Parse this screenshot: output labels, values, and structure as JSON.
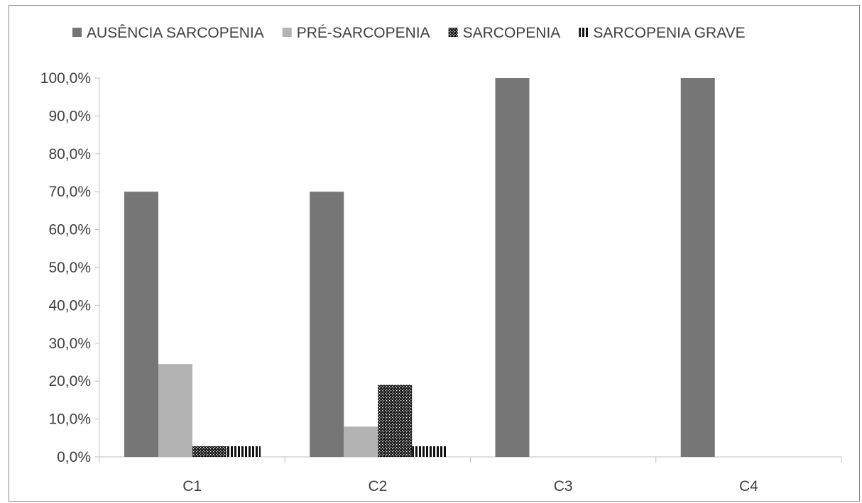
{
  "chart_data": {
    "type": "bar",
    "title": "",
    "xlabel": "",
    "ylabel": "",
    "categories": [
      "C1",
      "C2",
      "C3",
      "C4"
    ],
    "series": [
      {
        "name": "AUSÊNCIA SARCOPENIA",
        "values": [
          70.0,
          70.0,
          100.0,
          100.0
        ],
        "color": "#767676",
        "pattern": "solid"
      },
      {
        "name": "PRÉ-SARCOPENIA",
        "values": [
          24.5,
          8.0,
          0.0,
          0.0
        ],
        "color": "#b3b3b3",
        "pattern": "solid"
      },
      {
        "name": "SARCOPENIA",
        "values": [
          2.8,
          19.0,
          0.0,
          0.0
        ],
        "color": "#111111",
        "pattern": "dots"
      },
      {
        "name": "SARCOPENIA GRAVE",
        "values": [
          2.8,
          2.8,
          0.0,
          0.0
        ],
        "color": "#111111",
        "pattern": "vstripes"
      }
    ],
    "ylim": [
      0,
      100
    ],
    "yticks": [
      "0,0%",
      "10,0%",
      "20,0%",
      "30,0%",
      "40,0%",
      "50,0%",
      "60,0%",
      "70,0%",
      "80,0%",
      "90,0%",
      "100,0%"
    ],
    "grid": false,
    "legend_position": "top"
  }
}
